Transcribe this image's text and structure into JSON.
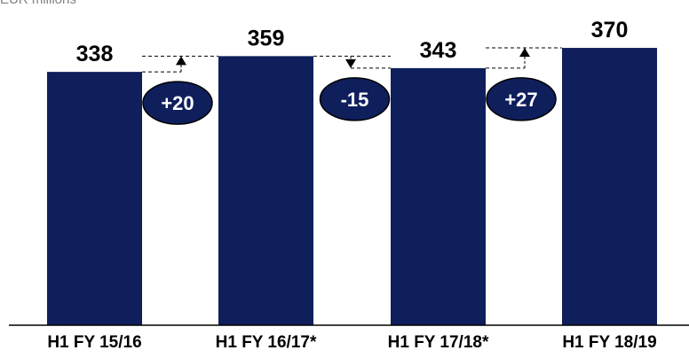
{
  "chart_data": {
    "type": "bar",
    "unit_label": "EUR millions",
    "categories": [
      "H1  FY 15/16",
      "H1 FY 16/17*",
      "H1 FY 17/18*",
      "H1 FY 18/19"
    ],
    "values": [
      338,
      359,
      343,
      370
    ],
    "deltas": [
      "+20",
      "-15",
      "+27"
    ],
    "bar_color": "#0f1f5c",
    "xlabel": "",
    "ylabel": "",
    "grid": false,
    "legend": "none"
  }
}
